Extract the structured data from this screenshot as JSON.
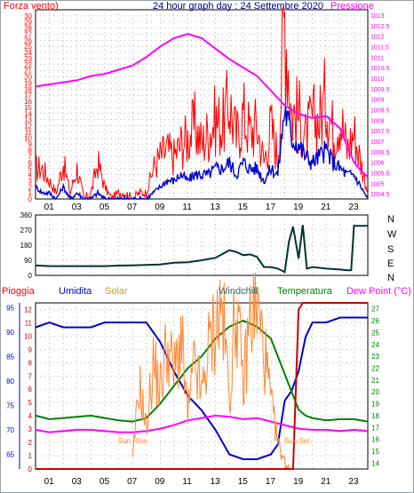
{
  "chart_data": [
    {
      "type": "line",
      "panel": "wind_pressure",
      "title": "24 hour graph day : 24 Settembre 2020",
      "left_label": "Forza vento)",
      "right_label": "Pressione",
      "x_ticks": [
        "01",
        "03",
        "05",
        "07",
        "09",
        "11",
        "13",
        "15",
        "17",
        "19",
        "21",
        "23"
      ],
      "ylim_left": [
        0,
        31
      ],
      "yticks_left": [
        0,
        1,
        2,
        3,
        4,
        5,
        6,
        7,
        8,
        9,
        10,
        11,
        12,
        13,
        14,
        15,
        16,
        17,
        18,
        19,
        20,
        21,
        22,
        23,
        24,
        25,
        26,
        27,
        28,
        29,
        30
      ],
      "ylim_right": [
        1004.25,
        1013.25
      ],
      "yticks_right": [
        1004.5,
        1005,
        1005.5,
        1006,
        1006.5,
        1007,
        1007.5,
        1008,
        1008.5,
        1009,
        1009.5,
        1010,
        1010.5,
        1011,
        1011.5,
        1012,
        1012.5,
        1013
      ],
      "series": [
        {
          "name": "Gust",
          "color": "#ff0000",
          "hours": [
            0,
            0.5,
            1,
            1.5,
            2,
            2.5,
            3,
            3.5,
            4,
            4.5,
            5,
            5.5,
            6,
            6.5,
            7,
            7.5,
            8,
            8.5,
            9,
            9.5,
            10,
            10.5,
            11,
            11.5,
            12,
            12.5,
            13,
            13.5,
            14,
            14.5,
            15,
            15.5,
            16,
            16.5,
            17,
            17.5,
            18,
            18.5,
            19,
            19.5,
            20,
            20.5,
            21,
            21.5,
            22,
            22.5,
            23,
            23.5,
            24
          ],
          "values": [
            5,
            5,
            3,
            1,
            6,
            1,
            5,
            0,
            1,
            6,
            2,
            0,
            1,
            1,
            0,
            1,
            1,
            5,
            7,
            8,
            7,
            9,
            10,
            12,
            9,
            11,
            13,
            12,
            16,
            10,
            14,
            11,
            12,
            6,
            12,
            7,
            31,
            14,
            14,
            10,
            13,
            13,
            17,
            11,
            14,
            8,
            11,
            6,
            1
          ]
        },
        {
          "name": "Wind",
          "color": "#0000cc",
          "hours": [
            0,
            0.5,
            1,
            1.5,
            2,
            2.5,
            3,
            3.5,
            4,
            4.5,
            5,
            5.5,
            6,
            6.5,
            7,
            7.5,
            8,
            8.5,
            9,
            9.5,
            10,
            10.5,
            11,
            11.5,
            12,
            12.5,
            13,
            13.5,
            14,
            14.5,
            15,
            15.5,
            16,
            16.5,
            17,
            17.5,
            18,
            18.5,
            19,
            19.5,
            20,
            20.5,
            21,
            21.5,
            22,
            22.5,
            23,
            23.5,
            24
          ],
          "values": [
            2,
            1,
            1,
            0,
            2,
            0,
            1,
            0,
            0,
            1,
            0,
            0,
            0,
            0,
            0,
            0,
            0,
            1,
            2,
            3,
            3,
            4,
            3,
            4,
            4,
            4,
            5,
            5,
            6,
            4,
            6,
            5,
            5,
            3,
            5,
            4,
            15,
            10,
            9,
            7,
            6,
            7,
            8,
            6,
            5,
            4,
            4,
            2,
            0
          ]
        },
        {
          "name": "Pressione",
          "color": "#ff00ff",
          "hours": [
            0,
            1,
            2,
            3,
            4,
            5,
            6,
            7,
            8,
            9,
            10,
            11,
            12,
            13,
            14,
            15,
            16,
            17,
            18,
            19,
            20,
            21,
            22,
            23,
            23.5,
            24
          ],
          "values": [
            1009.6,
            1009.7,
            1009.8,
            1009.9,
            1010.1,
            1010.2,
            1010.4,
            1010.6,
            1011.0,
            1011.5,
            1011.9,
            1012.1,
            1011.9,
            1011.4,
            1010.9,
            1010.5,
            1010.1,
            1009.4,
            1008.7,
            1008.3,
            1008.1,
            1008.2,
            1007.6,
            1006.0,
            1005.6,
            1005.3
          ]
        }
      ]
    },
    {
      "type": "line",
      "panel": "wind_direction",
      "yticks": [
        0,
        30,
        60,
        90,
        120,
        150,
        180,
        210,
        240,
        270,
        300,
        330,
        360
      ],
      "ylim": [
        0,
        360
      ],
      "compass": [
        "N",
        "W",
        "S",
        "E",
        "N"
      ],
      "x_ticks": [
        "01",
        "03",
        "05",
        "07",
        "09",
        "11",
        "13",
        "15",
        "17",
        "19",
        "21",
        "23"
      ],
      "series": [
        {
          "name": "Direzione",
          "color": "#003333",
          "hours": [
            0,
            1,
            2,
            3,
            4,
            5,
            6,
            7,
            8,
            9,
            10,
            11,
            12,
            13,
            14,
            14.5,
            15,
            15.5,
            16,
            16.5,
            17,
            17.5,
            18,
            18.3,
            18.6,
            19,
            19.3,
            19.6,
            20,
            21,
            22,
            22.5,
            22.8,
            23,
            24
          ],
          "values": [
            60,
            55,
            55,
            55,
            55,
            55,
            58,
            60,
            62,
            65,
            75,
            78,
            90,
            105,
            150,
            140,
            120,
            125,
            110,
            50,
            50,
            40,
            20,
            200,
            290,
            100,
            300,
            40,
            50,
            40,
            35,
            30,
            30,
            295,
            295
          ]
        }
      ]
    },
    {
      "type": "line",
      "panel": "weather",
      "left_labels": [
        "Pioggia",
        "Umidita",
        "Solar"
      ],
      "right_labels": [
        "Windchill",
        "Temperatura",
        "Dew Point (°C)"
      ],
      "annotations": [
        "Sun Rise",
        "Sun Set"
      ],
      "ylim_umidita": [
        62,
        96
      ],
      "yticks_umidita": [
        65,
        70,
        75,
        80,
        85,
        90,
        95
      ],
      "ylim_rain": [
        0,
        12.5
      ],
      "yticks_rain": [
        0,
        1,
        2,
        3,
        4,
        5,
        6,
        7,
        8,
        9,
        10,
        11,
        12
      ],
      "ylim_temp": [
        13.5,
        27.5
      ],
      "yticks_temp": [
        14,
        15,
        16,
        17,
        18,
        19,
        20,
        21,
        22,
        23,
        24,
        25,
        26,
        27
      ],
      "x_ticks": [
        "01",
        "03",
        "05",
        "07",
        "09",
        "11",
        "13",
        "15",
        "17",
        "19",
        "21",
        "23"
      ],
      "series": [
        {
          "name": "Umidita",
          "color": "#0000cc",
          "hours": [
            0,
            1,
            2,
            3,
            4,
            5,
            6,
            7,
            8,
            9,
            10,
            11,
            12,
            13,
            14,
            15,
            16,
            17,
            17.5,
            18,
            18.5,
            19,
            19.5,
            20,
            21,
            22,
            23,
            24
          ],
          "values": [
            91,
            92,
            91,
            91,
            91,
            92,
            92,
            92,
            92,
            88,
            82,
            77,
            74,
            70,
            65,
            64,
            64,
            65,
            67,
            76,
            78,
            82,
            89,
            92,
            92,
            93,
            93,
            93
          ]
        },
        {
          "name": "Temperatura",
          "color": "#008000",
          "hours": [
            0,
            1,
            2,
            3,
            4,
            5,
            6,
            7,
            8,
            9,
            10,
            11,
            12,
            13,
            14,
            15,
            16,
            17,
            18,
            19,
            19.5,
            20,
            21,
            22,
            23,
            24
          ],
          "values": [
            18.0,
            17.7,
            17.8,
            17.9,
            18.0,
            17.8,
            17.6,
            17.5,
            17.8,
            19.0,
            20.5,
            22.0,
            23.0,
            24.5,
            25.5,
            26.0,
            25.5,
            24.5,
            21.5,
            18.5,
            18.0,
            17.8,
            17.6,
            17.7,
            17.7,
            17.5
          ]
        },
        {
          "name": "Dew Point",
          "color": "#ff00ff",
          "hours": [
            0,
            1,
            2,
            3,
            4,
            5,
            6,
            7,
            8,
            9,
            10,
            11,
            12,
            13,
            14,
            15,
            16,
            17,
            18,
            19,
            20,
            21,
            22,
            23,
            24
          ],
          "values": [
            16.8,
            16.6,
            16.7,
            16.8,
            16.8,
            16.7,
            16.6,
            16.6,
            16.7,
            16.9,
            17.2,
            17.6,
            17.8,
            18.0,
            17.9,
            17.7,
            17.8,
            17.5,
            17.2,
            16.9,
            16.8,
            16.8,
            16.7,
            16.8,
            16.7
          ]
        },
        {
          "name": "Solar",
          "color": "#ff8833",
          "hours": [
            7,
            7.5,
            8,
            8.5,
            9,
            9.5,
            10,
            10.5,
            11,
            11.5,
            12,
            12.5,
            13,
            13.5,
            14,
            14.5,
            15,
            15.5,
            16,
            16.5,
            17,
            17.5,
            18,
            18.5
          ],
          "values": [
            0.5,
            6.5,
            3,
            8,
            6,
            9.5,
            7,
            10,
            4,
            8,
            5.5,
            9,
            11,
            12,
            5.5,
            12.5,
            6,
            11.5,
            12,
            9,
            5,
            2,
            0.5,
            0
          ]
        },
        {
          "name": "Pioggia",
          "color": "#cc0000",
          "hours": [
            0,
            18.6,
            19,
            19.3,
            20,
            24
          ],
          "values": [
            0,
            0,
            12,
            12.5,
            12.5,
            12.5
          ]
        }
      ]
    }
  ]
}
